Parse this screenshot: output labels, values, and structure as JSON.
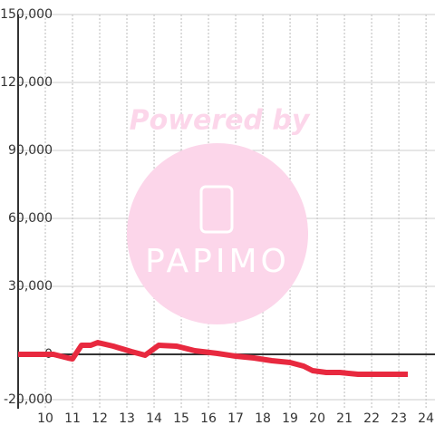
{
  "chart_data": {
    "type": "line",
    "watermark": {
      "top": "Powered by",
      "logo": "PAPIMO"
    },
    "x": [
      9,
      10.3,
      10.83,
      11,
      11.33,
      11.67,
      11.93,
      12.5,
      13.17,
      13.67,
      14.17,
      14.83,
      15.5,
      16.33,
      17,
      17.67,
      18.33,
      19,
      19.5,
      19.83,
      20.33,
      20.83,
      21.5,
      22.33,
      23.33
    ],
    "series": [
      {
        "color": "#e8293f",
        "values": [
          0,
          0,
          -1600,
          -2000,
          4000,
          4000,
          5200,
          3600,
          1200,
          -400,
          4000,
          3600,
          1600,
          400,
          -800,
          -1600,
          -2800,
          -3600,
          -5200,
          -7200,
          -8000,
          -8000,
          -8800,
          -8800,
          -8800
        ]
      }
    ],
    "xlim": [
      9,
      24.33
    ],
    "xticks": [
      10,
      11,
      12,
      13,
      14,
      15,
      16,
      17,
      18,
      19,
      20,
      21,
      22,
      23,
      24
    ],
    "ylim": [
      -24000,
      150000
    ],
    "yticks": [
      {
        "value": -20000,
        "label": "-20,000"
      },
      0,
      {
        "value": 30000,
        "label": "30,000"
      },
      {
        "value": 60000,
        "label": "60,000"
      },
      {
        "value": 90000,
        "label": "90,000"
      },
      {
        "value": 120000,
        "label": "120,000"
      },
      {
        "value": 150000,
        "label": "150,000"
      }
    ],
    "grid": true
  }
}
